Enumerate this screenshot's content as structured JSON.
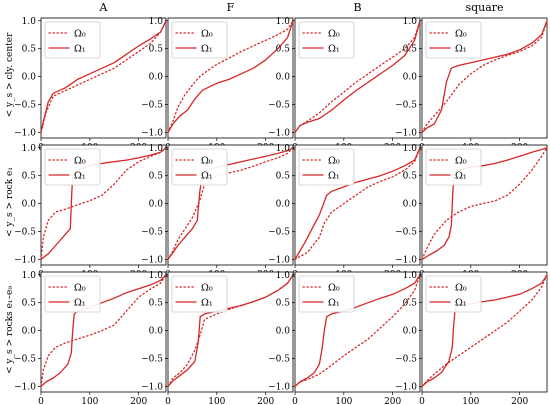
{
  "figure": {
    "column_titles": [
      "A",
      "F",
      "B",
      "square"
    ],
    "row_labels": [
      "< y_s > cly. center",
      "< y_s > rock e₁",
      "< y_s > rocks e₁–e₉"
    ],
    "legend": {
      "series0": "Ω₀",
      "series1": "Ω₁"
    },
    "line_color": "#d62728"
  },
  "chart_data": {
    "type": "line",
    "xlim": [
      0,
      256
    ],
    "ylim": [
      -1.1,
      1.05
    ],
    "xticks": [
      0,
      100,
      200
    ],
    "yticks": [
      -1.0,
      -0.5,
      0.0,
      0.5,
      1.0
    ],
    "xtick_labels": [
      "0",
      "100",
      "200"
    ],
    "ytick_labels": [
      "−1.0",
      "−0.5",
      "0.0",
      "0.5",
      "1.0"
    ],
    "series_styles": [
      {
        "name": "Ω₀",
        "dash": "dotted"
      },
      {
        "name": "Ω₁",
        "dash": "solid"
      }
    ],
    "panels": [
      {
        "row": 0,
        "col": 0,
        "series": [
          {
            "name": "Ω₀",
            "x": [
              0,
              10,
              25,
              50,
              75,
              100,
              125,
              150,
              175,
              200,
              225,
              245,
              256
            ],
            "y": [
              -1.0,
              -0.65,
              -0.35,
              -0.25,
              -0.15,
              -0.05,
              0.05,
              0.15,
              0.3,
              0.45,
              0.6,
              0.8,
              1.0
            ]
          },
          {
            "name": "Ω₁",
            "x": [
              0,
              5,
              15,
              25,
              50,
              75,
              100,
              125,
              150,
              175,
              200,
              225,
              245,
              256
            ],
            "y": [
              -1.0,
              -0.8,
              -0.45,
              -0.3,
              -0.2,
              -0.05,
              0.05,
              0.15,
              0.25,
              0.4,
              0.55,
              0.68,
              0.8,
              1.0
            ]
          }
        ]
      },
      {
        "row": 0,
        "col": 1,
        "series": [
          {
            "name": "Ω₀",
            "x": [
              0,
              10,
              20,
              35,
              50,
              65,
              80,
              100,
              125,
              150,
              175,
              200,
              225,
              245,
              256
            ],
            "y": [
              -1.0,
              -0.8,
              -0.55,
              -0.32,
              -0.15,
              0.0,
              0.1,
              0.22,
              0.33,
              0.45,
              0.55,
              0.65,
              0.75,
              0.85,
              1.0
            ]
          },
          {
            "name": "Ω₁",
            "x": [
              0,
              10,
              25,
              40,
              55,
              70,
              85,
              100,
              125,
              150,
              175,
              200,
              225,
              245,
              256
            ],
            "y": [
              -1.0,
              -0.85,
              -0.7,
              -0.6,
              -0.4,
              -0.25,
              -0.18,
              -0.12,
              -0.05,
              0.05,
              0.15,
              0.3,
              0.5,
              0.7,
              1.0
            ]
          }
        ]
      },
      {
        "row": 0,
        "col": 2,
        "series": [
          {
            "name": "Ω₀",
            "x": [
              0,
              10,
              25,
              50,
              75,
              100,
              125,
              150,
              175,
              200,
              225,
              245,
              256
            ],
            "y": [
              -1.0,
              -0.88,
              -0.8,
              -0.65,
              -0.45,
              -0.28,
              -0.1,
              0.05,
              0.2,
              0.35,
              0.5,
              0.7,
              1.0
            ]
          },
          {
            "name": "Ω₁",
            "x": [
              0,
              10,
              25,
              50,
              75,
              100,
              125,
              150,
              175,
              200,
              225,
              245,
              256
            ],
            "y": [
              -1.0,
              -0.88,
              -0.82,
              -0.75,
              -0.6,
              -0.42,
              -0.25,
              -0.1,
              0.05,
              0.2,
              0.38,
              0.65,
              1.0
            ]
          }
        ]
      },
      {
        "row": 0,
        "col": 3,
        "series": [
          {
            "name": "Ω₀",
            "x": [
              0,
              10,
              25,
              50,
              75,
              100,
              125,
              150,
              175,
              200,
              225,
              245,
              256
            ],
            "y": [
              -1.0,
              -0.85,
              -0.7,
              -0.45,
              -0.15,
              0.05,
              0.2,
              0.3,
              0.38,
              0.45,
              0.55,
              0.7,
              1.0
            ]
          },
          {
            "name": "Ω₁",
            "x": [
              0,
              10,
              25,
              40,
              50,
              60,
              75,
              100,
              125,
              150,
              175,
              200,
              225,
              245,
              256
            ],
            "y": [
              -1.0,
              -0.92,
              -0.85,
              -0.6,
              -0.1,
              0.15,
              0.2,
              0.25,
              0.3,
              0.35,
              0.4,
              0.48,
              0.6,
              0.75,
              1.0
            ]
          }
        ]
      },
      {
        "row": 1,
        "col": 0,
        "series": [
          {
            "name": "Ω₀",
            "x": [
              0,
              5,
              15,
              30,
              50,
              75,
              100,
              125,
              150,
              175,
              200,
              225,
              245,
              256
            ],
            "y": [
              -1.0,
              -0.6,
              -0.3,
              -0.15,
              -0.1,
              -0.02,
              0.05,
              0.15,
              0.35,
              0.6,
              0.75,
              0.85,
              0.92,
              1.0
            ]
          },
          {
            "name": "Ω₁",
            "x": [
              0,
              15,
              30,
              45,
              60,
              63,
              65,
              75,
              100,
              125,
              150,
              175,
              200,
              225,
              245,
              256
            ],
            "y": [
              -1.0,
              -0.9,
              -0.75,
              -0.6,
              -0.45,
              0.2,
              0.5,
              0.6,
              0.68,
              0.72,
              0.75,
              0.78,
              0.82,
              0.87,
              0.92,
              1.0
            ]
          }
        ]
      },
      {
        "row": 1,
        "col": 1,
        "series": [
          {
            "name": "Ω₀",
            "x": [
              0,
              10,
              20,
              35,
              50,
              65,
              75,
              100,
              125,
              150,
              175,
              200,
              225,
              245,
              256
            ],
            "y": [
              -1.0,
              -0.85,
              -0.65,
              -0.45,
              -0.25,
              0.05,
              0.35,
              0.5,
              0.55,
              0.6,
              0.67,
              0.75,
              0.82,
              0.9,
              1.0
            ]
          },
          {
            "name": "Ω₁",
            "x": [
              0,
              10,
              20,
              35,
              50,
              60,
              65,
              70,
              75,
              100,
              125,
              150,
              175,
              200,
              225,
              245,
              256
            ],
            "y": [
              -1.0,
              -0.88,
              -0.75,
              -0.6,
              -0.45,
              -0.3,
              0.2,
              0.5,
              0.58,
              0.65,
              0.7,
              0.75,
              0.8,
              0.85,
              0.9,
              0.95,
              1.0
            ]
          }
        ]
      },
      {
        "row": 1,
        "col": 2,
        "series": [
          {
            "name": "Ω₀",
            "x": [
              0,
              10,
              25,
              50,
              60,
              75,
              100,
              125,
              150,
              175,
              200,
              225,
              245,
              256
            ],
            "y": [
              -1.0,
              -0.95,
              -0.88,
              -0.6,
              -0.35,
              -0.15,
              0.0,
              0.15,
              0.3,
              0.4,
              0.48,
              0.6,
              0.75,
              1.0
            ]
          },
          {
            "name": "Ω₁",
            "x": [
              0,
              10,
              20,
              35,
              50,
              65,
              75,
              100,
              125,
              150,
              175,
              200,
              225,
              245,
              256
            ],
            "y": [
              -1.0,
              -0.85,
              -0.7,
              -0.45,
              -0.2,
              0.15,
              0.22,
              0.3,
              0.38,
              0.44,
              0.5,
              0.58,
              0.68,
              0.78,
              1.0
            ]
          }
        ]
      },
      {
        "row": 1,
        "col": 3,
        "series": [
          {
            "name": "Ω₀",
            "x": [
              0,
              10,
              25,
              50,
              75,
              100,
              125,
              150,
              175,
              200,
              225,
              245,
              256
            ],
            "y": [
              -1.0,
              -0.8,
              -0.55,
              -0.3,
              -0.15,
              -0.05,
              0.0,
              0.05,
              0.15,
              0.35,
              0.6,
              0.85,
              1.0
            ]
          },
          {
            "name": "Ω₁",
            "x": [
              0,
              15,
              30,
              45,
              55,
              60,
              63,
              66,
              75,
              100,
              125,
              150,
              175,
              200,
              225,
              245,
              256
            ],
            "y": [
              -1.0,
              -0.92,
              -0.85,
              -0.75,
              -0.6,
              -0.4,
              0.2,
              0.55,
              0.6,
              0.65,
              0.68,
              0.72,
              0.78,
              0.85,
              0.92,
              0.97,
              1.0
            ]
          }
        ]
      },
      {
        "row": 2,
        "col": 0,
        "series": [
          {
            "name": "Ω₀",
            "x": [
              0,
              5,
              15,
              30,
              50,
              75,
              100,
              125,
              150,
              175,
              200,
              225,
              245,
              256
            ],
            "y": [
              -1.0,
              -0.7,
              -0.45,
              -0.3,
              -0.22,
              -0.15,
              -0.08,
              0.0,
              0.1,
              0.35,
              0.6,
              0.75,
              0.85,
              1.0
            ]
          },
          {
            "name": "Ω₁",
            "x": [
              0,
              10,
              25,
              40,
              55,
              62,
              65,
              68,
              75,
              100,
              125,
              150,
              175,
              200,
              225,
              245,
              256
            ],
            "y": [
              -1.0,
              -0.92,
              -0.85,
              -0.75,
              -0.6,
              -0.4,
              0.0,
              0.3,
              0.35,
              0.42,
              0.5,
              0.58,
              0.68,
              0.75,
              0.82,
              0.9,
              1.0
            ]
          }
        ]
      },
      {
        "row": 2,
        "col": 1,
        "series": [
          {
            "name": "Ω₀",
            "x": [
              0,
              10,
              25,
              40,
              55,
              65,
              75,
              100,
              125,
              150,
              175,
              200,
              225,
              245,
              256
            ],
            "y": [
              -1.0,
              -0.85,
              -0.75,
              -0.6,
              -0.35,
              -0.1,
              0.2,
              0.3,
              0.38,
              0.45,
              0.52,
              0.6,
              0.72,
              0.85,
              1.0
            ]
          },
          {
            "name": "Ω₁",
            "x": [
              0,
              10,
              25,
              40,
              55,
              62,
              66,
              75,
              100,
              125,
              150,
              175,
              200,
              225,
              245,
              256
            ],
            "y": [
              -1.0,
              -0.9,
              -0.8,
              -0.7,
              -0.55,
              -0.2,
              0.25,
              0.3,
              0.35,
              0.4,
              0.45,
              0.52,
              0.6,
              0.72,
              0.85,
              1.0
            ]
          }
        ]
      },
      {
        "row": 2,
        "col": 2,
        "series": [
          {
            "name": "Ω₀",
            "x": [
              0,
              10,
              25,
              50,
              75,
              100,
              125,
              150,
              175,
              200,
              225,
              245,
              256
            ],
            "y": [
              -1.0,
              -0.92,
              -0.88,
              -0.78,
              -0.62,
              -0.45,
              -0.3,
              -0.15,
              0.05,
              0.25,
              0.48,
              0.72,
              1.0
            ]
          },
          {
            "name": "Ω₁",
            "x": [
              0,
              10,
              25,
              40,
              50,
              56,
              60,
              65,
              75,
              100,
              125,
              150,
              175,
              200,
              225,
              245,
              256
            ],
            "y": [
              -1.0,
              -0.92,
              -0.85,
              -0.75,
              -0.6,
              -0.3,
              0.0,
              0.25,
              0.3,
              0.35,
              0.42,
              0.5,
              0.58,
              0.65,
              0.75,
              0.85,
              1.0
            ]
          }
        ]
      },
      {
        "row": 2,
        "col": 3,
        "series": [
          {
            "name": "Ω₀",
            "x": [
              0,
              10,
              25,
              50,
              75,
              100,
              125,
              150,
              175,
              200,
              225,
              245,
              256
            ],
            "y": [
              -1.0,
              -0.9,
              -0.78,
              -0.6,
              -0.45,
              -0.3,
              -0.15,
              0.0,
              0.15,
              0.35,
              0.55,
              0.78,
              1.0
            ]
          },
          {
            "name": "Ω₁",
            "x": [
              0,
              10,
              25,
              40,
              55,
              62,
              65,
              68,
              75,
              100,
              125,
              150,
              175,
              200,
              225,
              245,
              256
            ],
            "y": [
              -1.0,
              -0.92,
              -0.85,
              -0.75,
              -0.55,
              -0.3,
              0.1,
              0.4,
              0.45,
              0.48,
              0.52,
              0.55,
              0.6,
              0.65,
              0.75,
              0.85,
              1.0
            ]
          }
        ]
      }
    ]
  }
}
